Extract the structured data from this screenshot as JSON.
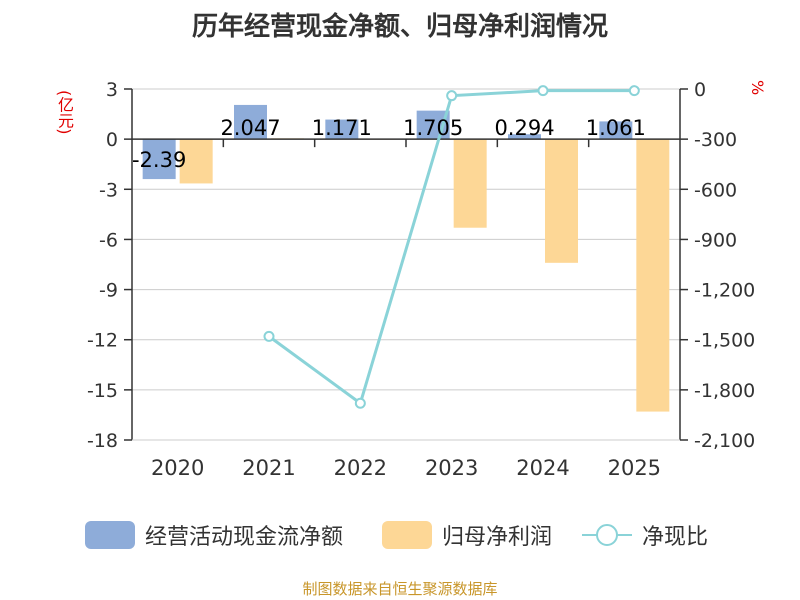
{
  "title": "历年经营现金净额、归母净利润情况",
  "unit_left": "(亿元)",
  "unit_right": "%",
  "source": "制图数据来自恒生聚源数据库",
  "colors": {
    "cash_flow": "#8eacd9",
    "net_profit": "#fdd796",
    "ratio": "#8ad3d8",
    "axis": "#333333",
    "grid": "#cccccc"
  },
  "legend": {
    "cash_flow_label": "经营活动现金流净额",
    "net_profit_label": "归母净利润",
    "ratio_label": "净现比"
  },
  "chart_data": {
    "type": "bar",
    "title": "历年经营现金净额、归母净利润情况",
    "categories": [
      "2020",
      "2021",
      "2022",
      "2023",
      "2024",
      "2025"
    ],
    "ylabel": "(亿元)",
    "ylabel_right": "%",
    "ylim": [
      -18,
      3
    ],
    "ylim_right": [
      -2100,
      0
    ],
    "yticks_left": [
      3,
      0,
      -3,
      -6,
      -9,
      -12,
      -15,
      -18
    ],
    "yticks_left_labels": [
      "3",
      "0",
      "-3",
      "-6",
      "-9",
      "-12",
      "-15",
      "-18"
    ],
    "yticks_right": [
      0,
      -300,
      -600,
      -900,
      -1200,
      -1500,
      -1800,
      -2100
    ],
    "yticks_right_labels": [
      "0",
      "-300",
      "-600",
      "-900",
      "-1,200",
      "-1,500",
      "-1,800",
      "-2,100"
    ],
    "grid": true,
    "legend_position": "bottom",
    "series": [
      {
        "name": "经营活动现金流净额",
        "type": "bar",
        "axis": "left",
        "values": [
          -2.39,
          2.047,
          1.171,
          1.705,
          0.294,
          1.061
        ],
        "labels": [
          "-2.39",
          "2.047",
          "1.171",
          "1.705",
          "0.294",
          "1.061"
        ]
      },
      {
        "name": "归母净利润",
        "type": "bar",
        "axis": "left",
        "values": [
          -2.65,
          0.05,
          0.03,
          -5.3,
          -7.4,
          -16.3
        ]
      },
      {
        "name": "净现比",
        "type": "line",
        "axis": "right",
        "values": [
          null,
          -1480,
          -1880,
          -40,
          -10,
          -10
        ]
      }
    ]
  }
}
